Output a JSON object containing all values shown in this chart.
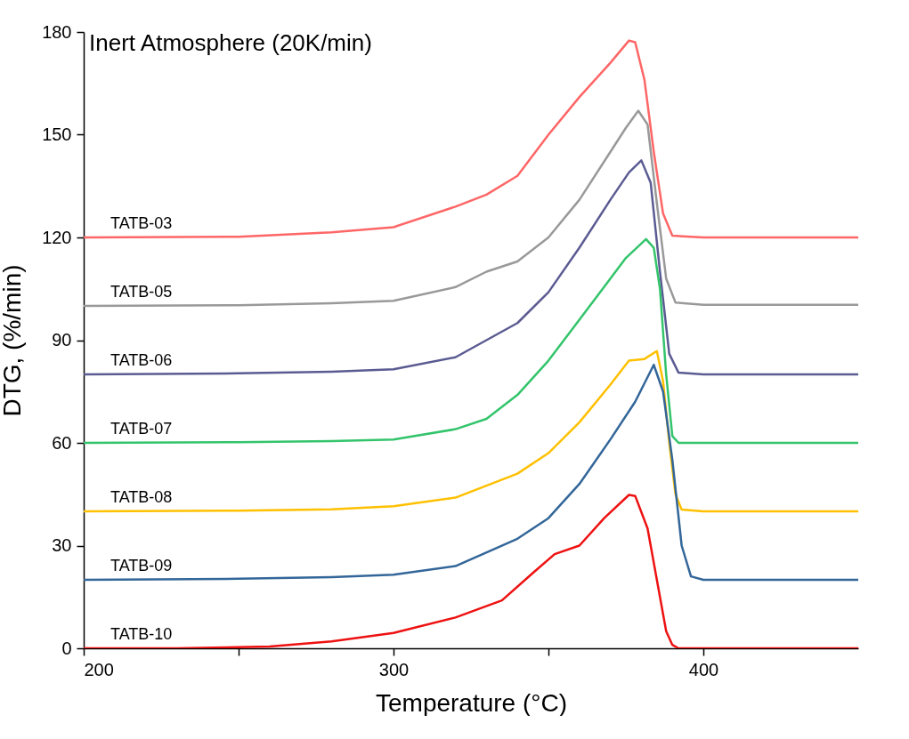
{
  "chart_data": {
    "type": "line",
    "title": "Inert Atmosphere (20K/min)",
    "xlabel": "Temperature (°C)",
    "ylabel": "DTG, (%/min)",
    "xlim": [
      200,
      450
    ],
    "xticks": [
      200,
      {
        "value": 250,
        "label": null
      },
      300,
      {
        "value": 350,
        "label": null
      },
      400
    ],
    "ylim": [
      0,
      180
    ],
    "yticks": [
      0,
      30,
      60,
      90,
      120,
      150,
      180
    ],
    "grid": false,
    "legend": false,
    "marker": "none",
    "line_style": "solid",
    "series": [
      {
        "name": "TATB-03",
        "color": "#ff6666",
        "x": [
          200,
          250,
          280,
          300,
          320,
          330,
          340,
          350,
          360,
          370,
          376,
          378,
          381,
          384,
          387,
          390,
          400,
          450
        ],
        "values": [
          120,
          120.2,
          121.5,
          123,
          129,
          132.5,
          138,
          150,
          161,
          171,
          177.5,
          177,
          166,
          145,
          127,
          120.5,
          120,
          120
        ]
      },
      {
        "name": "TATB-05",
        "color": "#999999",
        "x": [
          200,
          250,
          280,
          300,
          320,
          330,
          340,
          350,
          360,
          370,
          375,
          379,
          382,
          385,
          388,
          391,
          400,
          450
        ],
        "values": [
          100,
          100.2,
          100.8,
          101.5,
          105.5,
          110,
          113,
          120,
          131,
          145,
          152,
          157,
          153,
          130,
          108,
          101,
          100.3,
          100.3
        ]
      },
      {
        "name": "TATB-06",
        "color": "#5b5b93",
        "x": [
          200,
          250,
          280,
          300,
          320,
          340,
          350,
          360,
          370,
          376,
          380,
          383,
          386,
          389,
          392,
          400,
          450
        ],
        "values": [
          80,
          80.3,
          80.8,
          81.5,
          85,
          95,
          104,
          117,
          131,
          139,
          142.5,
          136,
          110,
          86,
          80.5,
          80,
          80
        ]
      },
      {
        "name": "TATB-07",
        "color": "#33c46b",
        "x": [
          200,
          250,
          280,
          300,
          320,
          330,
          340,
          350,
          360,
          370,
          375,
          381.5,
          384,
          386,
          388,
          390,
          392,
          450
        ],
        "values": [
          60,
          60.2,
          60.5,
          61,
          64,
          67,
          74,
          84,
          96,
          108,
          114,
          119.5,
          117,
          105,
          80,
          62,
          60,
          60
        ]
      },
      {
        "name": "TATB-08",
        "color": "#ffc000",
        "x": [
          200,
          250,
          280,
          300,
          320,
          340,
          350,
          360,
          370,
          376,
          381,
          385,
          387,
          389,
          391,
          393,
          400,
          450
        ],
        "values": [
          40,
          40.2,
          40.6,
          41.5,
          44,
          51,
          57,
          66,
          77,
          84,
          84.5,
          86.8,
          78,
          60,
          45,
          40.5,
          40,
          40
        ]
      },
      {
        "name": "TATB-09",
        "color": "#336699",
        "x": [
          200,
          250,
          280,
          300,
          320,
          340,
          350,
          360,
          370,
          378,
          384,
          387,
          390,
          393,
          396,
          400,
          450
        ],
        "values": [
          20,
          20.3,
          20.8,
          21.5,
          24,
          32,
          38,
          48,
          61,
          72,
          82.8,
          75,
          55,
          30,
          21,
          20,
          20
        ]
      },
      {
        "name": "TATB-10",
        "color": "#ee1111",
        "x": [
          200,
          230,
          260,
          280,
          300,
          320,
          335,
          345,
          352,
          360,
          368,
          376,
          378,
          382,
          385,
          388,
          390,
          392,
          450
        ],
        "values": [
          0,
          0,
          0.5,
          2,
          4.5,
          9,
          14,
          22,
          27.5,
          30,
          38,
          44.8,
          44.5,
          35,
          20,
          5,
          1,
          0,
          0
        ]
      }
    ]
  }
}
